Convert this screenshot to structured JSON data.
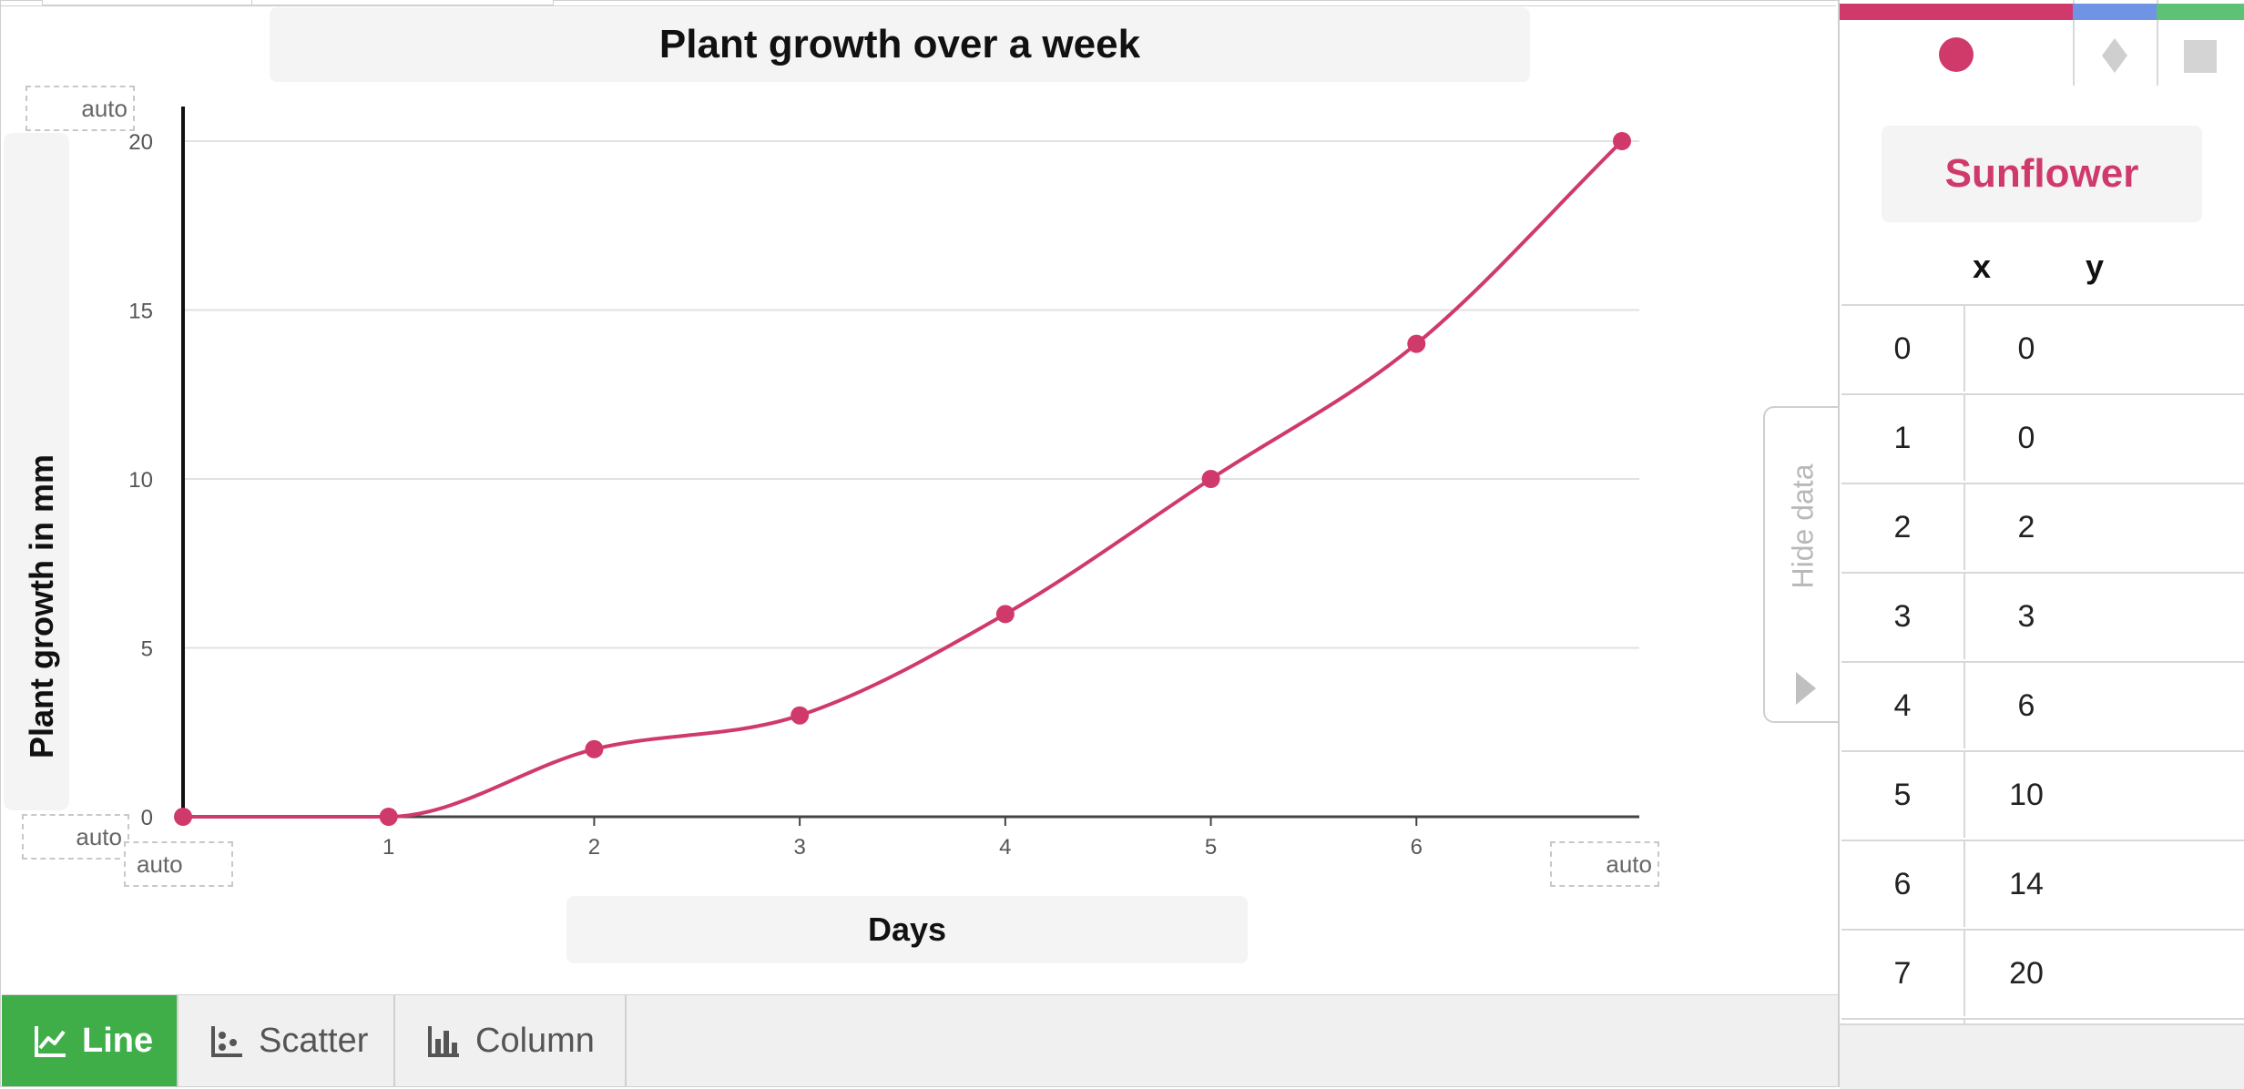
{
  "chart_data": {
    "type": "line",
    "title": "Plant growth over a week",
    "xlabel": "Days",
    "ylabel": "Plant growth in mm",
    "x": [
      0,
      1,
      2,
      3,
      4,
      5,
      6,
      7
    ],
    "series": [
      {
        "name": "Sunflower",
        "values": [
          0,
          0,
          2,
          3,
          6,
          10,
          14,
          20
        ],
        "color": "#d03a6b"
      }
    ],
    "xlim": [
      0,
      7
    ],
    "ylim": [
      0,
      20
    ],
    "xticks": [
      "1",
      "2",
      "3",
      "4",
      "5",
      "6"
    ],
    "yticks": [
      "0",
      "5",
      "10",
      "15",
      "20"
    ],
    "grid": true,
    "smooth": true
  },
  "axis_bounds": {
    "y_max": "auto",
    "y_min": "auto",
    "x_min": "auto",
    "x_max": "auto"
  },
  "toolbar": {
    "line_label": "Line",
    "scatter_label": "Scatter",
    "column_label": "Column",
    "active": "Line"
  },
  "panel": {
    "series_name": "Sunflower",
    "col_x": "x",
    "col_y": "y",
    "rows": [
      {
        "x": "0",
        "y": "0"
      },
      {
        "x": "1",
        "y": "0"
      },
      {
        "x": "2",
        "y": "2"
      },
      {
        "x": "3",
        "y": "3"
      },
      {
        "x": "4",
        "y": "6"
      },
      {
        "x": "5",
        "y": "10"
      },
      {
        "x": "6",
        "y": "14"
      },
      {
        "x": "7",
        "y": "20"
      }
    ],
    "series_tabs": [
      {
        "shape": "circle-icon",
        "color": "#d03a6b"
      },
      {
        "shape": "diamond-icon",
        "color": "#6f94e6"
      },
      {
        "shape": "square-icon",
        "color": "#5dc275"
      }
    ],
    "hide_label": "Hide data"
  }
}
